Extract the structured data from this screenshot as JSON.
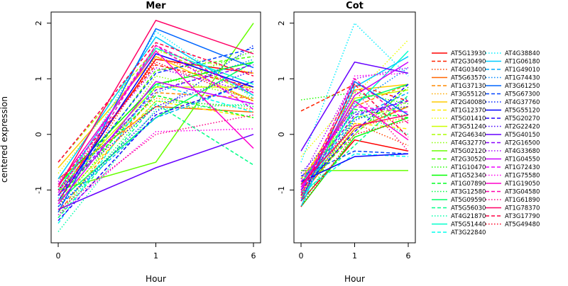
{
  "chart_data": {
    "type": "line",
    "ylabel": "centered expression",
    "x": [
      0,
      1,
      6
    ],
    "x_tick_labels": [
      "0",
      "1",
      "6"
    ],
    "ylim": [
      -1.95,
      2.2
    ],
    "y_ticks": [
      -1,
      0,
      1,
      2
    ],
    "grid": false,
    "legend_position": "right",
    "panels": [
      {
        "title": "Mer",
        "xlabel": "Hour",
        "series": [
          {
            "name": "AT5G13930",
            "values": [
              -1.1,
              1.35,
              1.1
            ]
          },
          {
            "name": "AT2G30490",
            "values": [
              -0.9,
              1.25,
              0.85
            ]
          },
          {
            "name": "AT4G03400",
            "values": [
              -1.3,
              1.4,
              0.8
            ]
          },
          {
            "name": "AT5G63570",
            "values": [
              -0.8,
              0.5,
              0.4
            ]
          },
          {
            "name": "AT1G37130",
            "values": [
              -1.4,
              0.75,
              0.65
            ]
          },
          {
            "name": "AT3G55120",
            "values": [
              -0.9,
              0.65,
              0.45
            ]
          },
          {
            "name": "AT2G40080",
            "values": [
              -0.6,
              1.4,
              0.6
            ]
          },
          {
            "name": "AT1G12370",
            "values": [
              -1.2,
              0.6,
              0.3
            ]
          },
          {
            "name": "AT5G01410",
            "values": [
              -0.7,
              1.5,
              1.1
            ]
          },
          {
            "name": "AT3G51240",
            "values": [
              -1.0,
              0.85,
              0.85
            ]
          },
          {
            "name": "AT2G46340",
            "values": [
              -0.5,
              1.55,
              0.7
            ]
          },
          {
            "name": "AT4G32770",
            "values": [
              -1.5,
              1.05,
              0.65
            ]
          },
          {
            "name": "AT5G02120",
            "values": [
              -1.0,
              -0.5,
              2.0
            ]
          },
          {
            "name": "AT2G30520",
            "values": [
              -1.2,
              1.15,
              1.4
            ]
          },
          {
            "name": "AT1G10470",
            "values": [
              -1.3,
              0.85,
              1.5
            ]
          },
          {
            "name": "AT1G52340",
            "values": [
              -0.9,
              0.9,
              1.3
            ]
          },
          {
            "name": "AT1G07890",
            "values": [
              -1.1,
              0.7,
              0.3
            ]
          },
          {
            "name": "AT3G12580",
            "values": [
              -1.45,
              0.6,
              0.5
            ]
          },
          {
            "name": "AT5G09590",
            "values": [
              -1.2,
              0.3,
              1.3
            ]
          },
          {
            "name": "AT5G56030",
            "values": [
              -1.5,
              0.55,
              -0.55
            ]
          },
          {
            "name": "AT4G21870",
            "values": [
              -1.75,
              0.45,
              0.55
            ]
          },
          {
            "name": "AT5G51440",
            "values": [
              -1.0,
              1.55,
              0.9
            ]
          },
          {
            "name": "AT3G22840",
            "values": [
              -1.6,
              0.9,
              0.4
            ]
          },
          {
            "name": "AT4G38840",
            "values": [
              -1.15,
              1.85,
              0.65
            ]
          },
          {
            "name": "AT1G06180",
            "values": [
              -0.8,
              1.75,
              0.7
            ]
          },
          {
            "name": "AT1G49010",
            "values": [
              -1.3,
              0.3,
              0.95
            ]
          },
          {
            "name": "AT1G74430",
            "values": [
              -1.0,
              0.75,
              1.35
            ]
          },
          {
            "name": "AT3G61250",
            "values": [
              -1.4,
              1.9,
              1.2
            ]
          },
          {
            "name": "AT5G67300",
            "values": [
              -1.1,
              1.1,
              1.55
            ]
          },
          {
            "name": "AT4G37760",
            "values": [
              -1.3,
              0.4,
              1.6
            ]
          },
          {
            "name": "AT5G55120",
            "values": [
              -1.2,
              1.45,
              0.85
            ]
          },
          {
            "name": "AT5G20270",
            "values": [
              -1.55,
              0.35,
              0.95
            ]
          },
          {
            "name": "AT2G22420",
            "values": [
              -1.0,
              0.5,
              1.15
            ]
          },
          {
            "name": "AT5G40150",
            "values": [
              -1.35,
              -0.6,
              0.0
            ]
          },
          {
            "name": "AT2G16500",
            "values": [
              -1.1,
              0.8,
              1.25
            ]
          },
          {
            "name": "AT4G33680",
            "values": [
              -0.85,
              1.2,
              0.75
            ]
          },
          {
            "name": "AT1G04550",
            "values": [
              -1.25,
              0.95,
              0.55
            ]
          },
          {
            "name": "AT1G72430",
            "values": [
              -1.05,
              1.6,
              0.45
            ]
          },
          {
            "name": "AT1G75580",
            "values": [
              -1.45,
              0.05,
              0.1
            ]
          },
          {
            "name": "AT1G19050",
            "values": [
              -0.9,
              1.5,
              -0.25
            ]
          },
          {
            "name": "AT3G04580",
            "values": [
              -1.2,
              1.6,
              0.75
            ]
          },
          {
            "name": "AT1G61890",
            "values": [
              -1.35,
              0.0,
              0.35
            ]
          },
          {
            "name": "AT1G78370",
            "values": [
              -0.95,
              2.05,
              1.45
            ]
          },
          {
            "name": "AT3G17790",
            "values": [
              -0.5,
              1.65,
              1.05
            ]
          },
          {
            "name": "AT5G49480",
            "values": [
              -1.0,
              1.3,
              0.6
            ]
          }
        ]
      },
      {
        "title": "Cot",
        "xlabel": "Hour",
        "series": [
          {
            "name": "AT5G13930",
            "values": [
              -1.2,
              -0.1,
              -0.3
            ]
          },
          {
            "name": "AT2G30490",
            "values": [
              0.42,
              0.9,
              0.6
            ]
          },
          {
            "name": "AT4G03400",
            "values": [
              -0.9,
              0.2,
              -0.2
            ]
          },
          {
            "name": "AT5G63570",
            "values": [
              -1.1,
              0.1,
              0.5
            ]
          },
          {
            "name": "AT1G37130",
            "values": [
              -0.8,
              0.5,
              0.9
            ]
          },
          {
            "name": "AT3G55120",
            "values": [
              -1.0,
              0.15,
              0.3
            ]
          },
          {
            "name": "AT2G40080",
            "values": [
              -0.9,
              0.8,
              0.9
            ]
          },
          {
            "name": "AT1G12370",
            "values": [
              -1.05,
              0.2,
              0.1
            ]
          },
          {
            "name": "AT5G01410",
            "values": [
              -0.4,
              0.7,
              1.7
            ]
          },
          {
            "name": "AT3G51240",
            "values": [
              -1.15,
              0.65,
              0.8
            ]
          },
          {
            "name": "AT2G46340",
            "values": [
              -0.8,
              0.3,
              0.5
            ]
          },
          {
            "name": "AT4G32770",
            "values": [
              -1.0,
              0.1,
              0.6
            ]
          },
          {
            "name": "AT5G02120",
            "values": [
              -0.65,
              -0.65,
              -0.65
            ]
          },
          {
            "name": "AT2G30520",
            "values": [
              -1.0,
              0.0,
              0.85
            ]
          },
          {
            "name": "AT1G10470",
            "values": [
              0.62,
              0.75,
              0.55
            ]
          },
          {
            "name": "AT1G52340",
            "values": [
              -1.3,
              -0.05,
              0.3
            ]
          },
          {
            "name": "AT1G07890",
            "values": [
              -1.0,
              0.45,
              0.3
            ]
          },
          {
            "name": "AT3G12580",
            "values": [
              -1.3,
              0.3,
              0.35
            ]
          },
          {
            "name": "AT5G09590",
            "values": [
              -0.9,
              0.6,
              0.9
            ]
          },
          {
            "name": "AT5G56030",
            "values": [
              -1.1,
              -0.2,
              0.7
            ]
          },
          {
            "name": "AT4G21870",
            "values": [
              -0.85,
              0.4,
              0.0
            ]
          },
          {
            "name": "AT5G51440",
            "values": [
              -1.2,
              0.5,
              1.5
            ]
          },
          {
            "name": "AT3G22840",
            "values": [
              -1.05,
              -0.35,
              -0.4
            ]
          },
          {
            "name": "AT4G38840",
            "values": [
              -0.5,
              2.0,
              1.05
            ]
          },
          {
            "name": "AT1G06180",
            "values": [
              -1.3,
              0.85,
              1.4
            ]
          },
          {
            "name": "AT1G49010",
            "values": [
              -1.0,
              0.3,
              0.75
            ]
          },
          {
            "name": "AT1G74430",
            "values": [
              -0.9,
              0.55,
              1.2
            ]
          },
          {
            "name": "AT3G61250",
            "values": [
              -1.2,
              0.95,
              0.35
            ]
          },
          {
            "name": "AT5G67300",
            "values": [
              -0.75,
              -0.3,
              -0.35
            ]
          },
          {
            "name": "AT4G37760",
            "values": [
              -1.1,
              0.25,
              0.65
            ]
          },
          {
            "name": "AT5G55120",
            "values": [
              -0.85,
              -0.4,
              -0.35
            ]
          },
          {
            "name": "AT5G20270",
            "values": [
              -1.0,
              0.05,
              0.9
            ]
          },
          {
            "name": "AT2G22420",
            "values": [
              -0.7,
              0.4,
              0.5
            ]
          },
          {
            "name": "AT5G40150",
            "values": [
              -0.3,
              1.3,
              1.1
            ]
          },
          {
            "name": "AT2G16500",
            "values": [
              -0.95,
              0.35,
              0.6
            ]
          },
          {
            "name": "AT4G33680",
            "values": [
              -0.8,
              1.0,
              1.2
            ]
          },
          {
            "name": "AT1G04550",
            "values": [
              -1.0,
              0.7,
              1.3
            ]
          },
          {
            "name": "AT1G72430",
            "values": [
              -0.85,
              0.5,
              0.4
            ]
          },
          {
            "name": "AT1G75580",
            "values": [
              -1.15,
              1.05,
              1.1
            ]
          },
          {
            "name": "AT1G19050",
            "values": [
              -0.95,
              0.6,
              -0.1
            ]
          },
          {
            "name": "AT3G04580",
            "values": [
              -1.05,
              1.0,
              0.2
            ]
          },
          {
            "name": "AT1G61890",
            "values": [
              -1.2,
              0.8,
              -0.3
            ]
          },
          {
            "name": "AT1G78370",
            "values": [
              -0.9,
              0.15,
              0.35
            ]
          },
          {
            "name": "AT3G17790",
            "values": [
              -1.1,
              0.9,
              -0.05
            ]
          },
          {
            "name": "AT5G49480",
            "values": [
              -1.3,
              0.0,
              0.25
            ]
          }
        ]
      }
    ]
  },
  "legend": {
    "entries": [
      {
        "name": "AT5G13930",
        "color": "#FF0000",
        "dash": "solid"
      },
      {
        "name": "AT2G30490",
        "color": "#FF2200",
        "dash": "dashed"
      },
      {
        "name": "AT4G03400",
        "color": "#FF4400",
        "dash": "dotted"
      },
      {
        "name": "AT5G63570",
        "color": "#FF6600",
        "dash": "solid"
      },
      {
        "name": "AT1G37130",
        "color": "#FF8800",
        "dash": "dashed"
      },
      {
        "name": "AT3G55120",
        "color": "#FFAA00",
        "dash": "dotted"
      },
      {
        "name": "AT2G40080",
        "color": "#FFCC00",
        "dash": "solid"
      },
      {
        "name": "AT1G12370",
        "color": "#FFEE00",
        "dash": "dashed"
      },
      {
        "name": "AT5G01410",
        "color": "#EEFF00",
        "dash": "dotted"
      },
      {
        "name": "AT3G51240",
        "color": "#CCFF00",
        "dash": "solid"
      },
      {
        "name": "AT2G46340",
        "color": "#AAFF00",
        "dash": "dashed"
      },
      {
        "name": "AT4G32770",
        "color": "#88FF00",
        "dash": "dotted"
      },
      {
        "name": "AT5G02120",
        "color": "#66FF00",
        "dash": "solid"
      },
      {
        "name": "AT2G30520",
        "color": "#44FF00",
        "dash": "dashed"
      },
      {
        "name": "AT1G10470",
        "color": "#22FF00",
        "dash": "dotted"
      },
      {
        "name": "AT1G52340",
        "color": "#00FF00",
        "dash": "solid"
      },
      {
        "name": "AT1G07890",
        "color": "#00FF22",
        "dash": "dashed"
      },
      {
        "name": "AT3G12580",
        "color": "#00FF44",
        "dash": "dotted"
      },
      {
        "name": "AT5G09590",
        "color": "#00FF66",
        "dash": "solid"
      },
      {
        "name": "AT5G56030",
        "color": "#00FF88",
        "dash": "dashed"
      },
      {
        "name": "AT4G21870",
        "color": "#00FFAA",
        "dash": "dotted"
      },
      {
        "name": "AT5G51440",
        "color": "#00FFCC",
        "dash": "solid"
      },
      {
        "name": "AT3G22840",
        "color": "#00FFEE",
        "dash": "dashed"
      },
      {
        "name": "AT4G38840",
        "color": "#00EEFF",
        "dash": "dotted"
      },
      {
        "name": "AT1G06180",
        "color": "#00CCFF",
        "dash": "solid"
      },
      {
        "name": "AT1G49010",
        "color": "#00AAFF",
        "dash": "dashed"
      },
      {
        "name": "AT1G74430",
        "color": "#0088FF",
        "dash": "dotted"
      },
      {
        "name": "AT3G61250",
        "color": "#0066FF",
        "dash": "solid"
      },
      {
        "name": "AT5G67300",
        "color": "#0044FF",
        "dash": "dashed"
      },
      {
        "name": "AT4G37760",
        "color": "#0022FF",
        "dash": "dotted"
      },
      {
        "name": "AT5G55120",
        "color": "#0000FF",
        "dash": "solid"
      },
      {
        "name": "AT5G20270",
        "color": "#2200FF",
        "dash": "dashed"
      },
      {
        "name": "AT2G22420",
        "color": "#4400FF",
        "dash": "dotted"
      },
      {
        "name": "AT5G40150",
        "color": "#6600FF",
        "dash": "solid"
      },
      {
        "name": "AT2G16500",
        "color": "#8800FF",
        "dash": "dashed"
      },
      {
        "name": "AT4G33680",
        "color": "#AA00FF",
        "dash": "dotted"
      },
      {
        "name": "AT1G04550",
        "color": "#CC00FF",
        "dash": "solid"
      },
      {
        "name": "AT1G72430",
        "color": "#EE00FF",
        "dash": "dashed"
      },
      {
        "name": "AT1G75580",
        "color": "#FF00EE",
        "dash": "dotted"
      },
      {
        "name": "AT1G19050",
        "color": "#FF00CC",
        "dash": "solid"
      },
      {
        "name": "AT3G04580",
        "color": "#FF00AA",
        "dash": "dashed"
      },
      {
        "name": "AT1G61890",
        "color": "#FF0088",
        "dash": "dotted"
      },
      {
        "name": "AT1G78370",
        "color": "#FF0066",
        "dash": "solid"
      },
      {
        "name": "AT3G17790",
        "color": "#FF0044",
        "dash": "dashed"
      },
      {
        "name": "AT5G49480",
        "color": "#FF0022",
        "dash": "dotted"
      }
    ]
  }
}
